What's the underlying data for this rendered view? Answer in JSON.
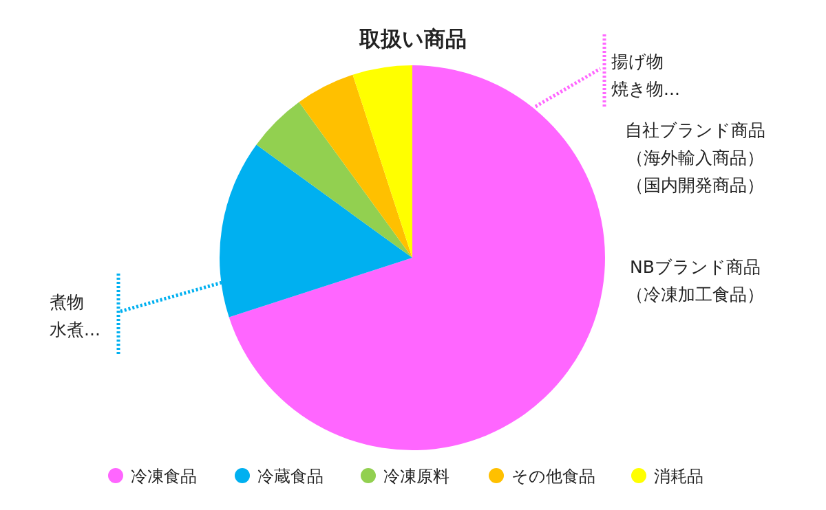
{
  "chart_data": {
    "type": "pie",
    "title": "取扱い商品",
    "categories": [
      "冷凍食品",
      "冷蔵食品",
      "冷凍原料",
      "その他食品",
      "消耗品"
    ],
    "values": [
      70,
      15,
      5,
      5,
      5
    ],
    "colors": [
      "#ff66ff",
      "#00b0f0",
      "#92d050",
      "#ffc000",
      "#ffff00"
    ],
    "legend": "bottom",
    "annotations": [
      "揚げ物",
      "焼き物...",
      "自社ブランド商品",
      "（海外輸入商品）",
      "（国内開発商品）",
      "NBブランド商品",
      "（冷凍加工食品）",
      "煮物",
      "水煮..."
    ]
  }
}
